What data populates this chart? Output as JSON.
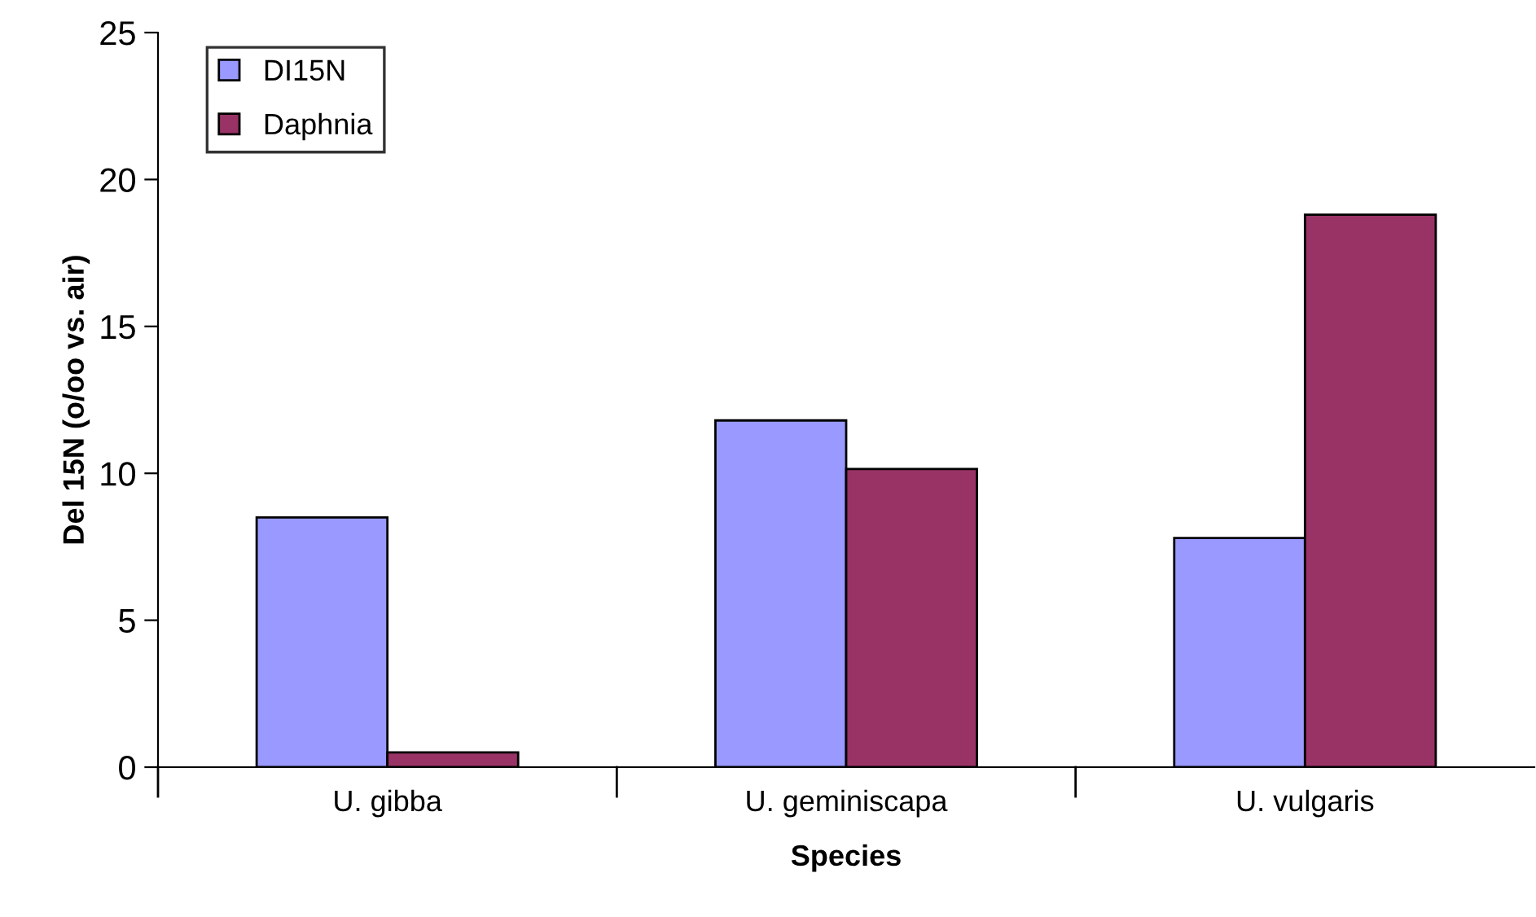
{
  "chart_data": {
    "type": "bar",
    "xlabel": "Species",
    "ylabel": "Del 15N (o/oo vs. air)",
    "categories": [
      "U. gibba",
      "U. geminiscapa",
      "U. vulgaris"
    ],
    "series": [
      {
        "name": "DI15N",
        "color": "#9999ff",
        "values": [
          8.5,
          11.8,
          7.8
        ]
      },
      {
        "name": "Daphnia",
        "color": "#993366",
        "values": [
          0.5,
          10.15,
          18.8
        ]
      }
    ],
    "ylim": [
      0,
      25
    ],
    "yticks": [
      0,
      5,
      10,
      15,
      20,
      25
    ],
    "grid": false,
    "legend": "top left"
  }
}
